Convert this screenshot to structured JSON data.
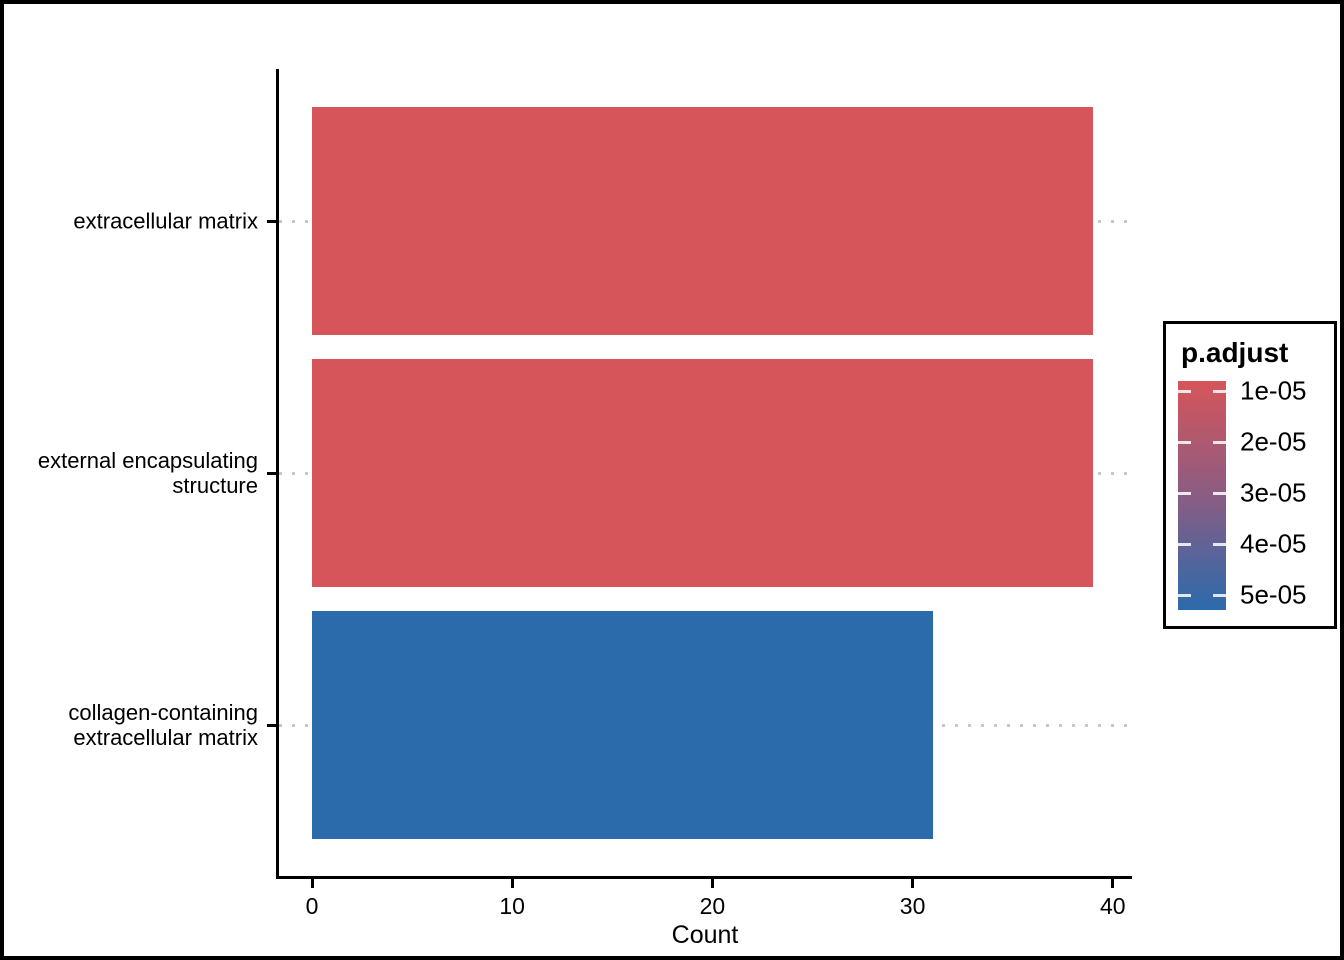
{
  "chart_data": {
    "type": "bar",
    "orientation": "horizontal",
    "title": "",
    "xlabel": "Count",
    "ylabel": "",
    "xlim": [
      0,
      40
    ],
    "x_ticks": [
      0,
      10,
      20,
      30,
      40
    ],
    "grid": {
      "style": "dotted",
      "color": "#c8c8c8",
      "direction": "horizontal-row-guides"
    },
    "categories": [
      {
        "label": "extracellular matrix",
        "label_lines": [
          "extracellular matrix"
        ],
        "value": 39,
        "fill": "#d6555a"
      },
      {
        "label": "external encapsulating structure",
        "label_lines": [
          "external encapsulating",
          "structure"
        ],
        "value": 39,
        "fill": "#d6555a"
      },
      {
        "label": "collagen-containing extracellular matrix",
        "label_lines": [
          "collagen-containing",
          "extracellular matrix"
        ],
        "value": 31,
        "fill": "#2b6bac"
      }
    ],
    "legend": {
      "title": "p.adjust",
      "type": "colorbar",
      "position": "right",
      "tick_labels": [
        "1e-05",
        "2e-05",
        "3e-05",
        "4e-05",
        "5e-05"
      ],
      "gradient_top_color": "#d6555a",
      "gradient_mid_color": "#8c5c82",
      "gradient_bottom_color": "#2b6bac"
    },
    "colors": {
      "axis": "#000000",
      "background": "#ffffff",
      "text": "#000000"
    }
  }
}
